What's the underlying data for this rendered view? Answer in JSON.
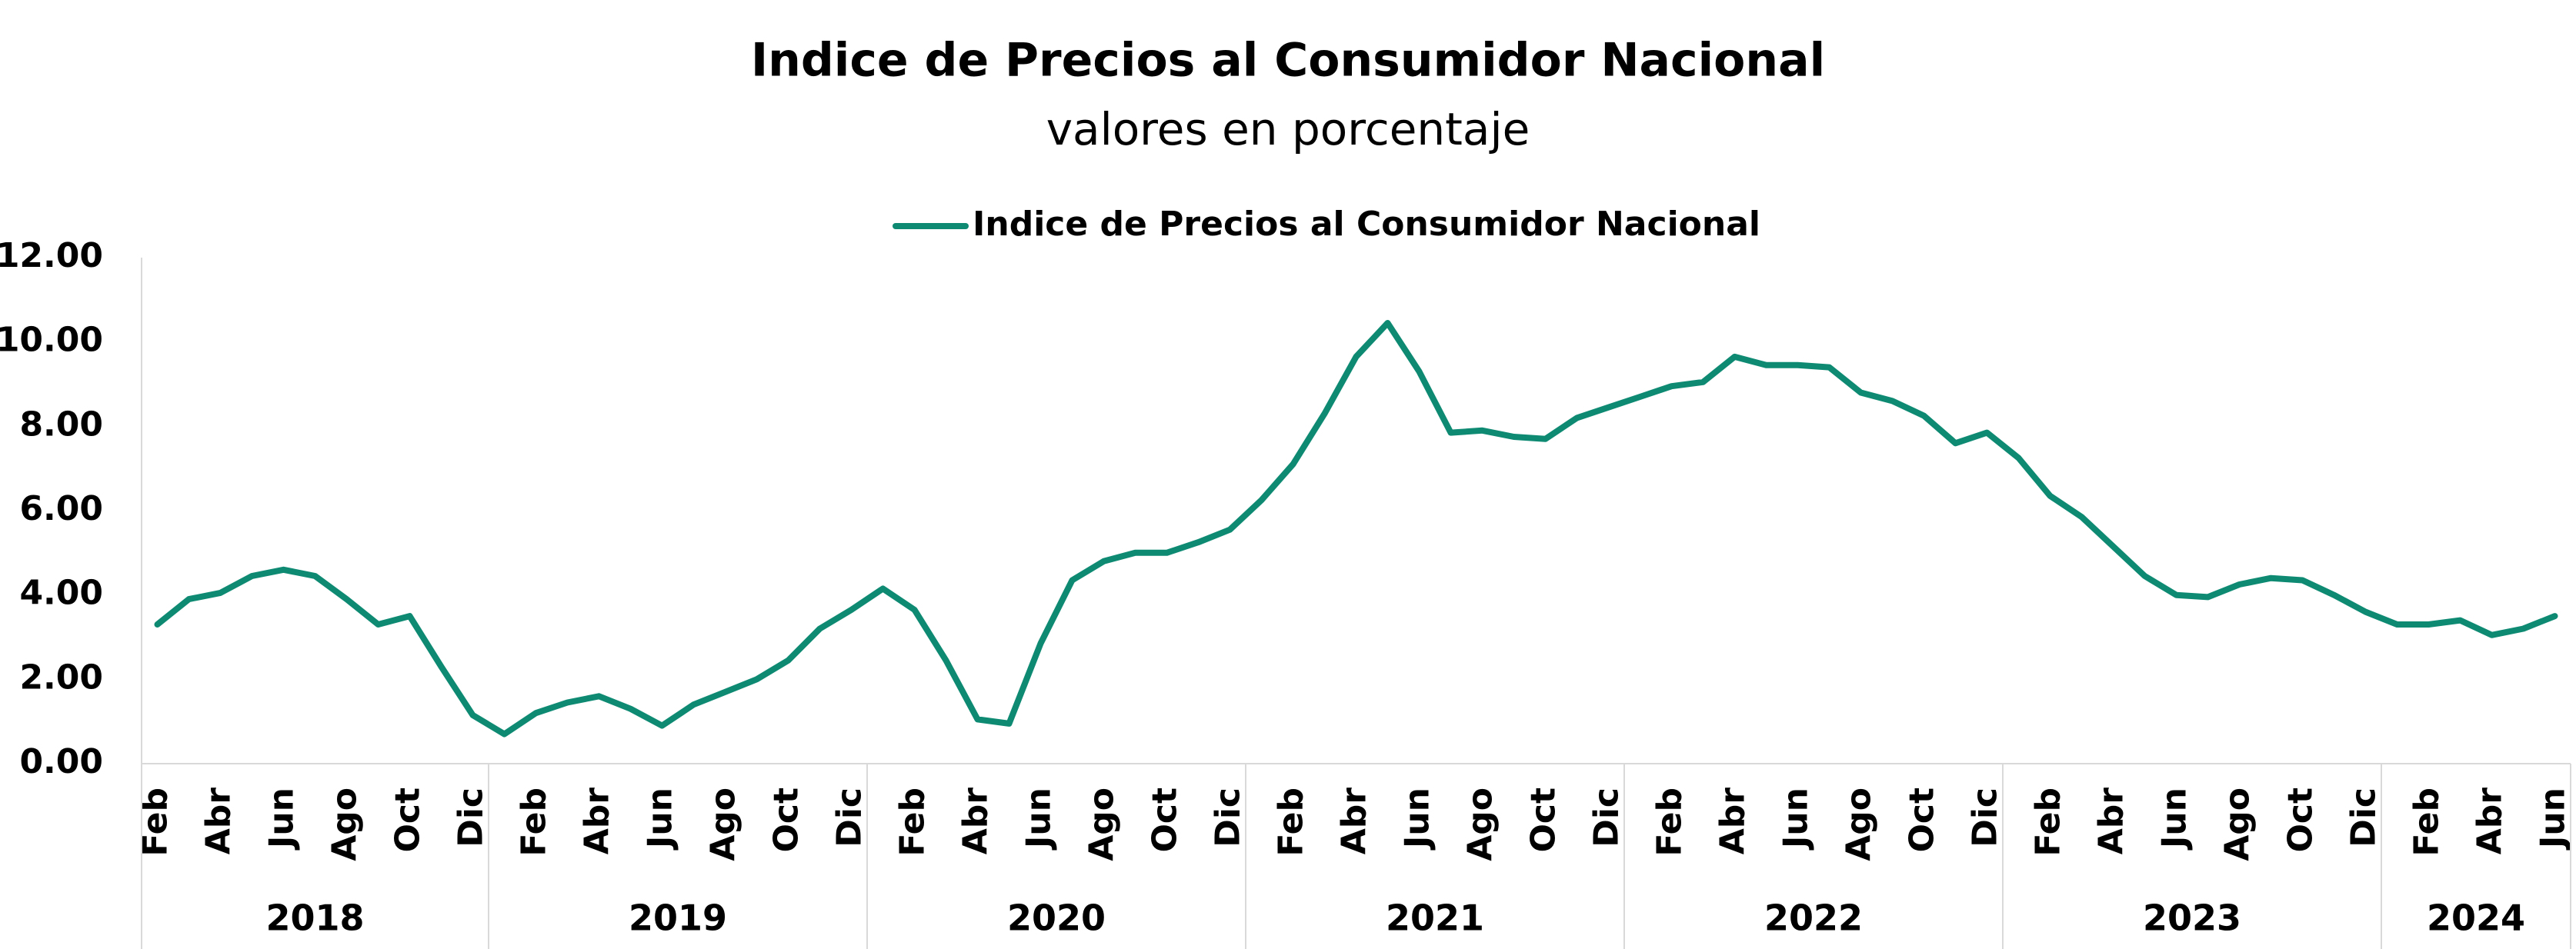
{
  "chart_data": {
    "type": "line",
    "title": "Indice de Precios al Consumidor Nacional",
    "subtitle": "valores en porcentaje",
    "categories": [
      "Feb",
      null,
      "Abr",
      null,
      "Jun",
      null,
      "Ago",
      null,
      "Oct",
      null,
      "Dic",
      null,
      "Feb",
      null,
      "Abr",
      null,
      "Jun",
      null,
      "Ago",
      null,
      "Oct",
      null,
      "Dic",
      null,
      "Feb",
      null,
      "Abr",
      null,
      "Jun",
      null,
      "Ago",
      null,
      "Oct",
      null,
      "Dic",
      null,
      "Feb",
      null,
      "Abr",
      null,
      "Jun",
      null,
      "Ago",
      null,
      "Oct",
      null,
      "Dic",
      null,
      "Feb",
      null,
      "Abr",
      null,
      "Jun",
      null,
      "Ago",
      null,
      "Oct",
      null,
      "Dic",
      null,
      "Feb",
      null,
      "Abr",
      null,
      "Jun",
      null,
      "Ago",
      null,
      "Oct",
      null,
      "Dic",
      null,
      "Feb",
      null,
      "Abr",
      null,
      "Jun"
    ],
    "groups": [
      {
        "label": "2018",
        "size": 11
      },
      {
        "label": "2019",
        "size": 12
      },
      {
        "label": "2020",
        "size": 12
      },
      {
        "label": "2021",
        "size": 12
      },
      {
        "label": "2022",
        "size": 12
      },
      {
        "label": "2023",
        "size": 12
      },
      {
        "label": "2024",
        "size": 6
      }
    ],
    "series": [
      {
        "name": "Indice de Precios al Consumidor Nacional",
        "color": "#0e8a73",
        "values": [
          3.3,
          3.9,
          4.05,
          4.45,
          4.6,
          4.45,
          3.9,
          3.3,
          3.5,
          2.3,
          1.15,
          0.7,
          1.2,
          1.45,
          1.6,
          1.3,
          0.9,
          1.4,
          1.7,
          2.0,
          2.45,
          3.2,
          3.65,
          4.15,
          3.65,
          2.45,
          1.05,
          0.95,
          2.85,
          4.35,
          4.8,
          5.0,
          5.0,
          5.25,
          5.55,
          6.25,
          7.1,
          8.3,
          9.65,
          10.45,
          9.3,
          7.85,
          7.9,
          7.75,
          7.7,
          8.2,
          8.45,
          8.7,
          8.95,
          9.05,
          9.65,
          9.45,
          9.45,
          9.4,
          8.8,
          8.6,
          8.25,
          7.6,
          7.85,
          7.25,
          6.35,
          5.85,
          5.15,
          4.45,
          4.0,
          3.95,
          4.25,
          4.4,
          4.35,
          4.0,
          3.6,
          3.3,
          3.3,
          3.4,
          3.05,
          3.2,
          3.5
        ]
      }
    ],
    "ylim": [
      0,
      12
    ],
    "yticks": [
      {
        "value": 0,
        "label": "0.00"
      },
      {
        "value": 2,
        "label": "2.00"
      },
      {
        "value": 4,
        "label": "4.00"
      },
      {
        "value": 6,
        "label": "6.00"
      },
      {
        "value": 8,
        "label": "8.00"
      },
      {
        "value": 10,
        "label": "10.00"
      },
      {
        "value": 12,
        "label": "12.00"
      }
    ],
    "grid": false,
    "legend": "top"
  }
}
